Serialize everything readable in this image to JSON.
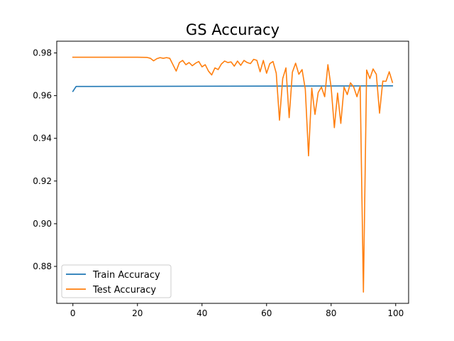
{
  "chart_data": {
    "type": "line",
    "title": "GS Accuracy",
    "xlabel": "",
    "ylabel": "",
    "xlim": [
      -5,
      104
    ],
    "ylim": [
      0.8627,
      0.9855
    ],
    "xticks": [
      0,
      20,
      40,
      60,
      80,
      100
    ],
    "yticks": [
      0.88,
      0.9,
      0.92,
      0.94,
      0.96,
      0.98
    ],
    "ytick_labels": [
      "0.88",
      "0.90",
      "0.92",
      "0.94",
      "0.96",
      "0.98"
    ],
    "grid": false,
    "legend_position": "lower-left",
    "series": [
      {
        "name": "Train Accuracy",
        "color": "#1f77b4",
        "points": [
          [
            0,
            0.962
          ],
          [
            1,
            0.9643
          ],
          [
            99,
            0.9646
          ]
        ]
      },
      {
        "name": "Test Accuracy",
        "color": "#ff7f0e",
        "points": [
          [
            0,
            0.978
          ],
          [
            20,
            0.978
          ],
          [
            23,
            0.9779
          ],
          [
            24,
            0.9775
          ],
          [
            25,
            0.9763
          ],
          [
            26,
            0.9773
          ],
          [
            27,
            0.9778
          ],
          [
            28,
            0.9775
          ],
          [
            29,
            0.9778
          ],
          [
            30,
            0.9775
          ],
          [
            31,
            0.9745
          ],
          [
            32,
            0.9715
          ],
          [
            33,
            0.9755
          ],
          [
            34,
            0.9765
          ],
          [
            35,
            0.9745
          ],
          [
            36,
            0.9755
          ],
          [
            37,
            0.974
          ],
          [
            38,
            0.9752
          ],
          [
            39,
            0.976
          ],
          [
            40,
            0.9735
          ],
          [
            41,
            0.9745
          ],
          [
            42,
            0.9715
          ],
          [
            43,
            0.9697
          ],
          [
            44,
            0.973
          ],
          [
            45,
            0.9722
          ],
          [
            46,
            0.9748
          ],
          [
            47,
            0.9762
          ],
          [
            48,
            0.9755
          ],
          [
            49,
            0.9758
          ],
          [
            50,
            0.9738
          ],
          [
            51,
            0.9762
          ],
          [
            52,
            0.9742
          ],
          [
            53,
            0.9765
          ],
          [
            54,
            0.9755
          ],
          [
            55,
            0.975
          ],
          [
            56,
            0.977
          ],
          [
            57,
            0.9765
          ],
          [
            58,
            0.9712
          ],
          [
            59,
            0.9765
          ],
          [
            60,
            0.9705
          ],
          [
            61,
            0.975
          ],
          [
            62,
            0.976
          ],
          [
            63,
            0.9705
          ],
          [
            64,
            0.9485
          ],
          [
            65,
            0.968
          ],
          [
            66,
            0.973
          ],
          [
            67,
            0.9497
          ],
          [
            68,
            0.971
          ],
          [
            69,
            0.9752
          ],
          [
            70,
            0.97
          ],
          [
            71,
            0.9722
          ],
          [
            72,
            0.963
          ],
          [
            73,
            0.9318
          ],
          [
            74,
            0.9635
          ],
          [
            75,
            0.9512
          ],
          [
            76,
            0.9615
          ],
          [
            77,
            0.964
          ],
          [
            78,
            0.9595
          ],
          [
            79,
            0.9745
          ],
          [
            80,
            0.964
          ],
          [
            81,
            0.945
          ],
          [
            82,
            0.9612
          ],
          [
            83,
            0.947
          ],
          [
            84,
            0.964
          ],
          [
            85,
            0.9605
          ],
          [
            86,
            0.966
          ],
          [
            87,
            0.964
          ],
          [
            88,
            0.9595
          ],
          [
            89,
            0.9645
          ],
          [
            90,
            0.868
          ],
          [
            91,
            0.972
          ],
          [
            92,
            0.968
          ],
          [
            93,
            0.9725
          ],
          [
            94,
            0.97
          ],
          [
            95,
            0.9518
          ],
          [
            96,
            0.9668
          ],
          [
            97,
            0.9667
          ],
          [
            98,
            0.9712
          ],
          [
            99,
            0.9662
          ]
        ]
      }
    ]
  }
}
